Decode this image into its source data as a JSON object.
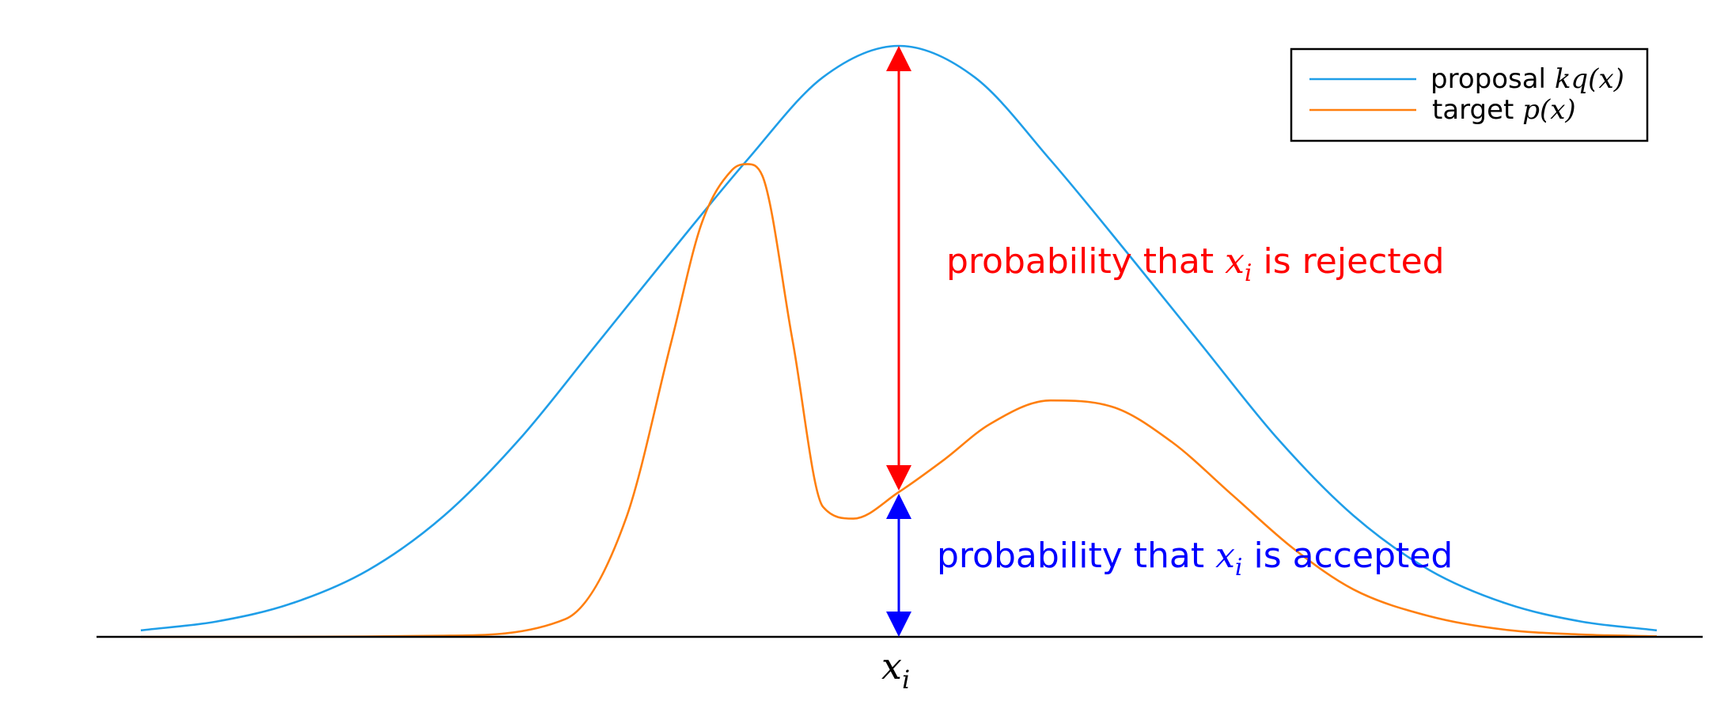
{
  "chart_data": {
    "type": "line",
    "title": "",
    "xlabel": "",
    "ylabel": "",
    "xlim": [
      -5.0,
      5.0
    ],
    "ylim": [
      0,
      1.05
    ],
    "grid": false,
    "legend_position": "top-right",
    "x_ticks": [
      {
        "x": 0,
        "label": "x",
        "sub": "i"
      }
    ],
    "series": [
      {
        "name": "proposal",
        "math": "kq(x)",
        "color": "#1f9ee8",
        "x": [
          -5.0,
          -4.5,
          -4.0,
          -3.5,
          -3.0,
          -2.5,
          -2.0,
          -1.5,
          -1.0,
          -0.5,
          0.0,
          0.5,
          1.0,
          1.5,
          2.0,
          2.5,
          3.0,
          3.5,
          4.0,
          4.5,
          5.0
        ],
        "y": [
          0.011,
          0.026,
          0.057,
          0.113,
          0.205,
          0.335,
          0.493,
          0.652,
          0.807,
          0.947,
          1.0,
          0.947,
          0.807,
          0.652,
          0.493,
          0.335,
          0.205,
          0.113,
          0.057,
          0.026,
          0.011
        ]
      },
      {
        "name": "target",
        "math": "p(x)",
        "color": "#ff7f0e",
        "x": [
          -5.0,
          -4.0,
          -3.0,
          -2.2,
          -1.8,
          -1.5,
          -1.3,
          -1.1,
          -1.0,
          -0.9,
          -0.7,
          -0.5,
          -0.3,
          0.0,
          0.3,
          0.6,
          1.0,
          1.4,
          1.8,
          2.2,
          2.6,
          3.0,
          3.5,
          4.0,
          4.5,
          5.0
        ],
        "y": [
          0.0,
          0.0,
          0.002,
          0.03,
          0.2,
          0.5,
          0.7,
          0.79,
          0.8,
          0.78,
          0.5,
          0.22,
          0.2,
          0.245,
          0.3,
          0.36,
          0.4,
          0.39,
          0.33,
          0.24,
          0.15,
          0.08,
          0.035,
          0.012,
          0.004,
          0.001
        ]
      }
    ],
    "annotations": [
      {
        "text": "probability that ",
        "math": "x",
        "sub": "i",
        "suffix": " is rejected",
        "color": "#ff0000"
      },
      {
        "text": "probability that ",
        "math": "x",
        "sub": "i",
        "suffix": " is accepted",
        "color": "#0000ff"
      }
    ],
    "arrows": {
      "x": 0,
      "rejected": {
        "from": 0.245,
        "to": 1.0,
        "color": "#ff0000"
      },
      "accepted": {
        "from": 0.0,
        "to": 0.245,
        "color": "#0000ff"
      }
    }
  }
}
